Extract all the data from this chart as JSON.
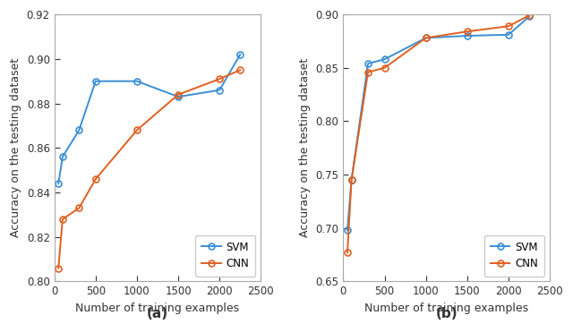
{
  "plot_a": {
    "x": [
      50,
      100,
      300,
      500,
      1000,
      1500,
      2000,
      2250
    ],
    "svm_y": [
      0.844,
      0.856,
      0.868,
      0.89,
      0.89,
      0.883,
      0.886,
      0.902
    ],
    "cnn_y": [
      0.806,
      0.828,
      0.833,
      0.846,
      0.868,
      0.884,
      0.891,
      0.895
    ],
    "xlim": [
      0,
      2500
    ],
    "ylim": [
      0.8,
      0.92
    ],
    "yticks": [
      0.8,
      0.82,
      0.84,
      0.86,
      0.88,
      0.9,
      0.92
    ],
    "xticks": [
      0,
      500,
      1000,
      1500,
      2000,
      2500
    ],
    "xlabel": "Number of training examples",
    "ylabel": "Accuracy on the testing dataset",
    "label": "(a)"
  },
  "plot_b": {
    "x": [
      50,
      100,
      300,
      500,
      1000,
      1500,
      2000,
      2250
    ],
    "svm_y": [
      0.698,
      0.745,
      0.854,
      0.858,
      0.878,
      0.88,
      0.881,
      0.898
    ],
    "cnn_y": [
      0.677,
      0.745,
      0.846,
      0.85,
      0.878,
      0.884,
      0.889,
      0.899
    ],
    "xlim": [
      0,
      2500
    ],
    "ylim": [
      0.65,
      0.9
    ],
    "yticks": [
      0.65,
      0.7,
      0.75,
      0.8,
      0.85,
      0.9
    ],
    "xticks": [
      0,
      500,
      1000,
      1500,
      2000,
      2500
    ],
    "xlabel": "Number of training examples",
    "ylabel": "Accuracy on the testing dataset",
    "label": "(b)"
  },
  "svm_color": "#3b8fd4",
  "cnn_color": "#e06020",
  "marker": "o",
  "markersize": 5,
  "linewidth": 1.4,
  "legend_labels": [
    "SVM",
    "CNN"
  ],
  "tick_fontsize": 8.5,
  "label_fontsize": 9,
  "legend_fontsize": 8.5,
  "sublabel_fontsize": 11,
  "spine_color": "#aaaaaa",
  "bg_color": "#ffffff"
}
